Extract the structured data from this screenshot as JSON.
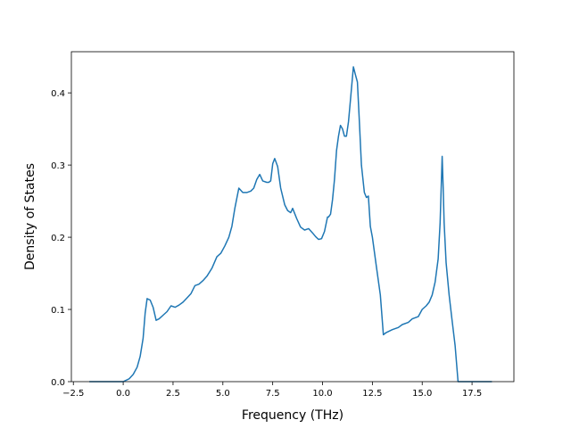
{
  "chart_data": {
    "type": "line",
    "title": "",
    "xlabel": "Frequency (THz)",
    "ylabel": "Density of States",
    "xlim": [
      -2.6,
      19.6
    ],
    "ylim": [
      0.0,
      0.457
    ],
    "xticks": [
      -2.5,
      0.0,
      2.5,
      5.0,
      7.5,
      10.0,
      12.5,
      15.0,
      17.5
    ],
    "xtick_labels": [
      "−2.5",
      "0.0",
      "2.5",
      "5.0",
      "7.5",
      "10.0",
      "12.5",
      "15.0",
      "17.5"
    ],
    "yticks": [
      0.0,
      0.1,
      0.2,
      0.3,
      0.4
    ],
    "ytick_labels": [
      "0.0",
      "0.1",
      "0.2",
      "0.3",
      "0.4"
    ],
    "grid": false,
    "legend": false,
    "line_color": "#1f77b4",
    "series": [
      {
        "x": [
          -1.7,
          -0.5,
          0.0,
          0.3,
          0.5,
          0.7,
          0.85,
          1.0,
          1.1,
          1.2,
          1.35,
          1.5,
          1.65,
          1.8,
          2.0,
          2.2,
          2.4,
          2.6,
          2.8,
          3.0,
          3.2,
          3.4,
          3.6,
          3.8,
          4.0,
          4.2,
          4.45,
          4.7,
          4.9,
          5.1,
          5.3,
          5.45,
          5.6,
          5.8,
          6.0,
          6.2,
          6.4,
          6.55,
          6.7,
          6.85,
          7.0,
          7.2,
          7.3,
          7.4,
          7.5,
          7.6,
          7.75,
          7.9,
          8.1,
          8.25,
          8.4,
          8.5,
          8.7,
          8.9,
          9.1,
          9.3,
          9.5,
          9.65,
          9.8,
          9.95,
          10.1,
          10.25,
          10.3,
          10.4,
          10.5,
          10.6,
          10.7,
          10.8,
          10.9,
          11.0,
          11.1,
          11.2,
          11.3,
          11.4,
          11.55,
          11.65,
          11.75,
          11.85,
          11.95,
          12.1,
          12.2,
          12.3,
          12.4,
          12.5,
          12.7,
          12.9,
          13.05,
          13.2,
          13.5,
          13.8,
          14.0,
          14.3,
          14.5,
          14.8,
          15.0,
          15.2,
          15.35,
          15.5,
          15.65,
          15.8,
          15.9,
          16.0,
          16.05,
          16.1,
          16.2,
          16.35,
          16.5,
          16.65,
          16.8,
          17.0,
          17.5,
          18.5
        ],
        "y": [
          0.0,
          0.0,
          0.0,
          0.004,
          0.01,
          0.02,
          0.035,
          0.06,
          0.095,
          0.115,
          0.113,
          0.103,
          0.085,
          0.087,
          0.092,
          0.097,
          0.105,
          0.103,
          0.106,
          0.11,
          0.116,
          0.122,
          0.133,
          0.135,
          0.14,
          0.146,
          0.157,
          0.173,
          0.178,
          0.188,
          0.2,
          0.215,
          0.24,
          0.268,
          0.262,
          0.262,
          0.264,
          0.268,
          0.28,
          0.287,
          0.278,
          0.276,
          0.276,
          0.278,
          0.302,
          0.309,
          0.298,
          0.268,
          0.245,
          0.237,
          0.234,
          0.24,
          0.226,
          0.214,
          0.21,
          0.212,
          0.206,
          0.201,
          0.197,
          0.198,
          0.208,
          0.228,
          0.228,
          0.232,
          0.252,
          0.28,
          0.32,
          0.34,
          0.355,
          0.35,
          0.34,
          0.34,
          0.36,
          0.39,
          0.436,
          0.425,
          0.415,
          0.36,
          0.3,
          0.262,
          0.255,
          0.257,
          0.215,
          0.2,
          0.16,
          0.12,
          0.065,
          0.068,
          0.072,
          0.075,
          0.079,
          0.082,
          0.087,
          0.09,
          0.1,
          0.105,
          0.11,
          0.12,
          0.138,
          0.17,
          0.22,
          0.312,
          0.27,
          0.22,
          0.165,
          0.12,
          0.085,
          0.05,
          0.0,
          0.0,
          0.0,
          0.0
        ]
      }
    ]
  }
}
